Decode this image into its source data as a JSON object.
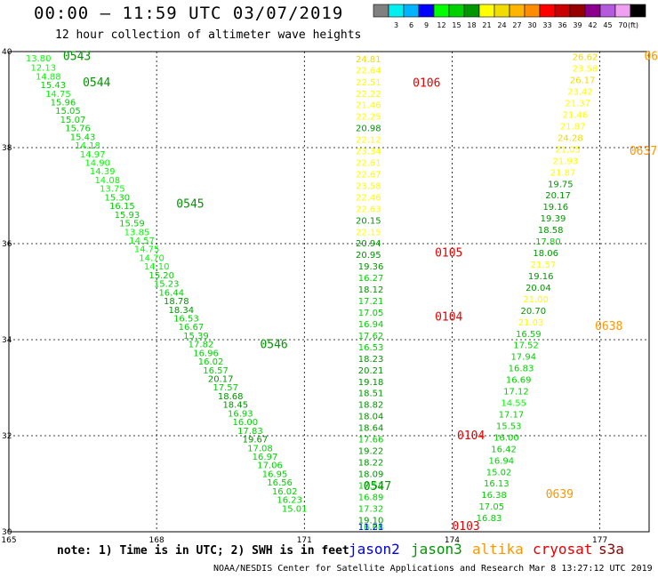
{
  "header": {
    "title": "00:00 – 11:59 UTC 03/07/2019",
    "subtitle": "12 hour collection of altimeter wave heights"
  },
  "colorbar": {
    "unit": "(ft)",
    "stops": [
      {
        "label": "",
        "color": "#808080"
      },
      {
        "label": "3",
        "color": "#00f0f0"
      },
      {
        "label": "6",
        "color": "#00b4ff"
      },
      {
        "label": "9",
        "color": "#0000ff"
      },
      {
        "label": "12",
        "color": "#00ff00"
      },
      {
        "label": "15",
        "color": "#00d200"
      },
      {
        "label": "18",
        "color": "#009600"
      },
      {
        "label": "21",
        "color": "#ffff00"
      },
      {
        "label": "24",
        "color": "#f0dc00"
      },
      {
        "label": "27",
        "color": "#ffb400"
      },
      {
        "label": "30",
        "color": "#ff8c00"
      },
      {
        "label": "33",
        "color": "#ff0000"
      },
      {
        "label": "36",
        "color": "#c80000"
      },
      {
        "label": "39",
        "color": "#960000"
      },
      {
        "label": "42",
        "color": "#8c008c"
      },
      {
        "label": "45",
        "color": "#b45adc"
      },
      {
        "label": "70",
        "color": "#f0a0f0"
      },
      {
        "label": "",
        "color": "#000000"
      }
    ]
  },
  "footer": {
    "note": "note: 1) Time is in UTC; 2) SWH is in feet",
    "credit": "NOAA/NESDIS Center for Satellite Applications and Research   Mar  8 13:27:12 UTC 2019"
  },
  "satellites": [
    {
      "name": "jason2",
      "color": "#0000e6"
    },
    {
      "name": "jason3",
      "color": "#009600"
    },
    {
      "name": "altika",
      "color": "#ff9600"
    },
    {
      "name": "cryosat",
      "color": "#e60000"
    },
    {
      "name": "s3a",
      "color": "#8c0000"
    }
  ],
  "chart_data": {
    "type": "scatter",
    "xlim": [
      165,
      178
    ],
    "ylim": [
      30,
      40
    ],
    "xticks": [
      "165",
      "168",
      "171",
      "174",
      "177"
    ],
    "yticks": [
      "30",
      "32",
      "34",
      "36",
      "38",
      "40"
    ],
    "grid": true,
    "time_labels": [
      {
        "text": "0543",
        "lon": 166.1,
        "lat": 39.82,
        "color": "#009600"
      },
      {
        "text": "0544",
        "lon": 166.5,
        "lat": 39.28,
        "color": "#009600"
      },
      {
        "text": "0545",
        "lon": 168.4,
        "lat": 36.75,
        "color": "#009600"
      },
      {
        "text": "0546",
        "lon": 170.1,
        "lat": 33.82,
        "color": "#009600"
      },
      {
        "text": "0547",
        "lon": 172.2,
        "lat": 30.87,
        "color": "#009600"
      },
      {
        "text": "0106",
        "lon": 173.2,
        "lat": 39.27,
        "color": "#e60000"
      },
      {
        "text": "0105",
        "lon": 173.65,
        "lat": 35.73,
        "color": "#e60000"
      },
      {
        "text": "0104",
        "lon": 173.65,
        "lat": 34.4,
        "color": "#e60000"
      },
      {
        "text": "0104",
        "lon": 174.1,
        "lat": 31.93,
        "color": "#e60000"
      },
      {
        "text": "0103",
        "lon": 174.0,
        "lat": 30.0,
        "color": "#e60000"
      },
      {
        "text": "0636",
        "lon": 177.9,
        "lat": 39.82,
        "color": "#ff9600"
      },
      {
        "text": "0637",
        "lon": 177.6,
        "lat": 37.85,
        "color": "#ff9600"
      },
      {
        "text": "0638",
        "lon": 176.9,
        "lat": 34.2,
        "color": "#ff9600"
      },
      {
        "text": "0639",
        "lon": 175.9,
        "lat": 30.7,
        "color": "#ff9600"
      }
    ],
    "series": [
      {
        "name": "jason3",
        "points": [
          [
            165.6,
            39.8,
            "13.80"
          ],
          [
            165.7,
            39.6,
            "12.13"
          ],
          [
            165.8,
            39.42,
            "14.88"
          ],
          [
            165.9,
            39.24,
            "15.43"
          ],
          [
            166.0,
            39.06,
            "14.75"
          ],
          [
            166.1,
            38.88,
            "15.96"
          ],
          [
            166.2,
            38.7,
            "15.05"
          ],
          [
            166.3,
            38.52,
            "15.07"
          ],
          [
            166.4,
            38.34,
            "15.76"
          ],
          [
            166.5,
            38.16,
            "15.43"
          ],
          [
            166.6,
            37.98,
            "14.18"
          ],
          [
            166.7,
            37.8,
            "14.97"
          ],
          [
            166.8,
            37.62,
            "14.90"
          ],
          [
            166.9,
            37.44,
            "14.39"
          ],
          [
            167.0,
            37.26,
            "14.08"
          ],
          [
            167.1,
            37.08,
            "13.75"
          ],
          [
            167.2,
            36.9,
            "15.30"
          ],
          [
            167.3,
            36.72,
            "16.15"
          ],
          [
            167.4,
            36.54,
            "15.93"
          ],
          [
            167.5,
            36.36,
            "15.59"
          ],
          [
            167.6,
            36.18,
            "13.85"
          ],
          [
            167.7,
            36.0,
            "14.57"
          ],
          [
            167.8,
            35.82,
            "14.75"
          ],
          [
            167.9,
            35.64,
            "14.70"
          ],
          [
            168.0,
            35.46,
            "14.10"
          ],
          [
            168.1,
            35.28,
            "15.20"
          ],
          [
            168.2,
            35.1,
            "15.23"
          ],
          [
            168.3,
            34.92,
            "16.44"
          ],
          [
            168.4,
            34.74,
            "18.78"
          ],
          [
            168.5,
            34.56,
            "18.34"
          ],
          [
            168.6,
            34.38,
            "16.53"
          ],
          [
            168.7,
            34.2,
            "16.67"
          ],
          [
            168.8,
            34.02,
            "15.39"
          ],
          [
            168.9,
            33.84,
            "17.82"
          ],
          [
            169.0,
            33.66,
            "16.96"
          ],
          [
            169.1,
            33.48,
            "16.02"
          ],
          [
            169.2,
            33.3,
            "16.57"
          ],
          [
            169.3,
            33.12,
            "20.17"
          ],
          [
            169.4,
            32.94,
            "17.57"
          ],
          [
            169.5,
            32.76,
            "18.68"
          ],
          [
            169.6,
            32.58,
            "18.45"
          ],
          [
            169.7,
            32.4,
            "16.93"
          ],
          [
            169.8,
            32.22,
            "16.00"
          ],
          [
            169.9,
            32.04,
            "17.83"
          ],
          [
            170.0,
            31.86,
            "19.67"
          ],
          [
            170.1,
            31.68,
            "17.08"
          ],
          [
            170.2,
            31.5,
            "16.97"
          ],
          [
            170.3,
            31.32,
            "17.06"
          ],
          [
            170.4,
            31.14,
            "16.95"
          ],
          [
            170.5,
            30.96,
            "16.56"
          ],
          [
            170.6,
            30.78,
            "16.02"
          ],
          [
            170.7,
            30.6,
            "16.23"
          ],
          [
            170.8,
            30.42,
            "15.01"
          ]
        ]
      },
      {
        "name": "cryosat",
        "points": [
          [
            172.3,
            39.78,
            "24.81"
          ],
          [
            172.3,
            39.55,
            "22.64"
          ],
          [
            172.3,
            39.3,
            "22.51"
          ],
          [
            172.3,
            39.06,
            "22.22"
          ],
          [
            172.3,
            38.82,
            "21.46"
          ],
          [
            172.3,
            38.58,
            "22.25"
          ],
          [
            172.3,
            38.34,
            "20.98"
          ],
          [
            172.3,
            38.1,
            "22.12"
          ],
          [
            172.3,
            37.86,
            "23.34"
          ],
          [
            172.3,
            37.62,
            "22.61"
          ],
          [
            172.3,
            37.38,
            "22.67"
          ],
          [
            172.3,
            37.14,
            "23.58"
          ],
          [
            172.3,
            36.9,
            "22.46"
          ],
          [
            172.3,
            36.66,
            "22.63"
          ],
          [
            172.3,
            36.42,
            "20.15"
          ],
          [
            172.3,
            36.18,
            "22.15"
          ],
          [
            172.3,
            35.94,
            "20.94"
          ],
          [
            172.3,
            35.7,
            "20.95"
          ],
          [
            172.35,
            35.46,
            "19.36"
          ],
          [
            172.35,
            35.22,
            "16.27"
          ],
          [
            172.35,
            34.98,
            "18.12"
          ],
          [
            172.35,
            34.74,
            "17.21"
          ],
          [
            172.35,
            34.5,
            "17.05"
          ],
          [
            172.35,
            34.26,
            "16.94"
          ],
          [
            172.35,
            34.02,
            "17.62"
          ],
          [
            172.35,
            33.78,
            "16.53"
          ],
          [
            172.35,
            33.54,
            "18.23"
          ],
          [
            172.35,
            33.3,
            "20.21"
          ],
          [
            172.35,
            33.06,
            "19.18"
          ],
          [
            172.35,
            32.82,
            "18.51"
          ],
          [
            172.35,
            32.58,
            "18.82"
          ],
          [
            172.35,
            32.34,
            "18.04"
          ],
          [
            172.35,
            32.1,
            "18.64"
          ],
          [
            172.35,
            31.86,
            "17.66"
          ],
          [
            172.35,
            31.62,
            "19.22"
          ],
          [
            172.35,
            31.38,
            "18.22"
          ],
          [
            172.35,
            31.14,
            "18.09"
          ],
          [
            172.35,
            30.9,
            "17.52"
          ],
          [
            172.35,
            30.66,
            "16.89"
          ],
          [
            172.35,
            30.42,
            "17.32"
          ],
          [
            172.35,
            30.18,
            "19.10"
          ],
          [
            172.35,
            29.94,
            "16.68"
          ],
          [
            172.35,
            29.7,
            "13.25"
          ],
          [
            172.35,
            29.46,
            "11.21"
          ]
        ]
      },
      {
        "name": "altika",
        "points": [
          [
            176.7,
            39.82,
            "26.62"
          ],
          [
            176.7,
            39.58,
            "23.58"
          ],
          [
            176.65,
            39.34,
            "26.17"
          ],
          [
            176.6,
            39.1,
            "23.42"
          ],
          [
            176.55,
            38.86,
            "21.37"
          ],
          [
            176.5,
            38.62,
            "21.46"
          ],
          [
            176.45,
            38.38,
            "21.87"
          ],
          [
            176.4,
            38.14,
            "24.28"
          ],
          [
            176.35,
            37.9,
            "21.05"
          ],
          [
            176.3,
            37.66,
            "21.93"
          ],
          [
            176.25,
            37.42,
            "21.87"
          ],
          [
            176.2,
            37.18,
            "19.75"
          ],
          [
            176.15,
            36.94,
            "20.17"
          ],
          [
            176.1,
            36.7,
            "19.16"
          ],
          [
            176.05,
            36.46,
            "19.39"
          ],
          [
            176.0,
            36.22,
            "18.58"
          ],
          [
            175.95,
            35.98,
            "17.80"
          ],
          [
            175.9,
            35.74,
            "18.06"
          ],
          [
            175.85,
            35.5,
            "21.57"
          ],
          [
            175.8,
            35.26,
            "19.16"
          ],
          [
            175.75,
            35.02,
            "20.04"
          ],
          [
            175.7,
            34.78,
            "21.00"
          ],
          [
            175.65,
            34.54,
            "20.70"
          ],
          [
            175.6,
            34.3,
            "21.03"
          ],
          [
            175.55,
            34.06,
            "16.59"
          ],
          [
            175.5,
            33.82,
            "17.52"
          ],
          [
            175.45,
            33.58,
            "17.94"
          ],
          [
            175.4,
            33.34,
            "16.83"
          ],
          [
            175.35,
            33.1,
            "16.69"
          ],
          [
            175.3,
            32.86,
            "17.12"
          ],
          [
            175.25,
            32.62,
            "14.55"
          ],
          [
            175.2,
            32.38,
            "17.17"
          ],
          [
            175.15,
            32.14,
            "15.53"
          ],
          [
            175.1,
            31.9,
            "16.00"
          ],
          [
            175.05,
            31.66,
            "16.42"
          ],
          [
            175.0,
            31.42,
            "16.94"
          ],
          [
            174.95,
            31.18,
            "15.02"
          ],
          [
            174.9,
            30.94,
            "16.13"
          ],
          [
            174.85,
            30.7,
            "16.38"
          ],
          [
            174.8,
            30.46,
            "17.05"
          ],
          [
            174.75,
            30.22,
            "16.83"
          ]
        ]
      }
    ]
  }
}
